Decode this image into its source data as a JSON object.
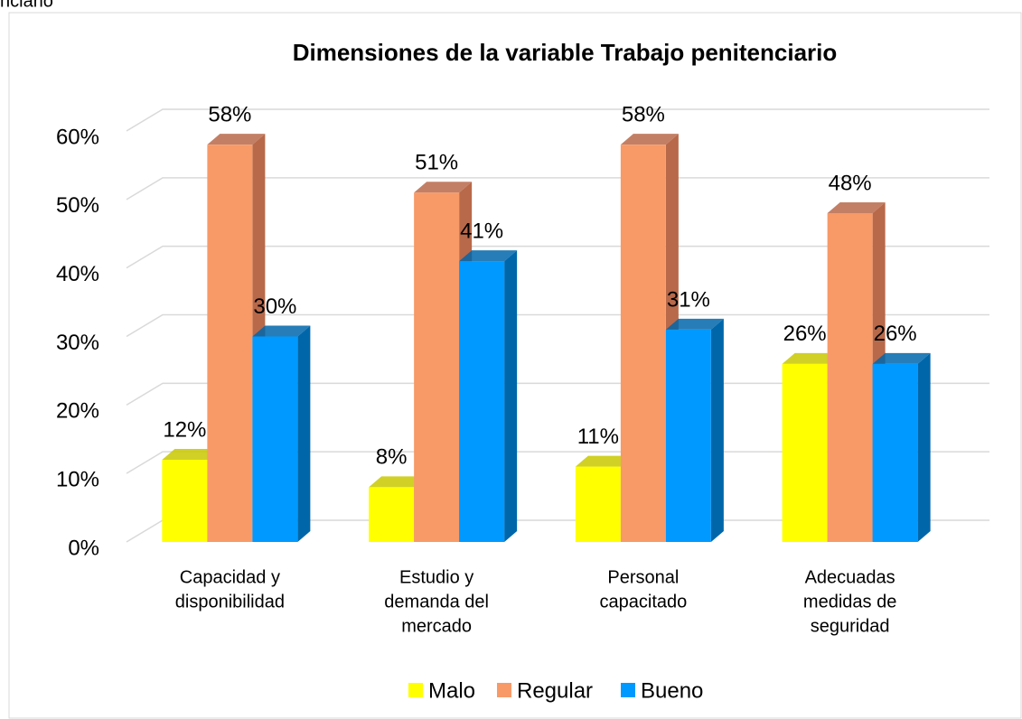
{
  "caption": "nciario",
  "chart_data": {
    "type": "bar3d",
    "title": "Dimensiones de la variable Trabajo penitenciario",
    "categories": [
      [
        "Capacidad y",
        "disponibilidad"
      ],
      [
        "Estudio y",
        "demanda del",
        "mercado"
      ],
      [
        "Personal",
        "capacitado"
      ],
      [
        "Adecuadas",
        "medidas de",
        "seguridad"
      ]
    ],
    "series": [
      {
        "name": "Malo",
        "color": "#ffff00",
        "side": "#c8c800",
        "values": [
          12,
          8,
          11,
          26
        ],
        "value_labels": [
          "12%",
          "8%",
          "11%",
          "26%"
        ]
      },
      {
        "name": "Regular",
        "color": "#f79a68",
        "side": "#b8694a",
        "values": [
          58,
          51,
          58,
          48
        ],
        "value_labels": [
          "58%",
          "51%",
          "58%",
          "48%"
        ]
      },
      {
        "name": "Bueno",
        "color": "#0099ff",
        "side": "#0066aa",
        "values": [
          30,
          41,
          31,
          26
        ],
        "value_labels": [
          "30%",
          "41%",
          "31%",
          "26%"
        ]
      }
    ],
    "ylim": [
      0,
      60
    ],
    "yticks": [
      {
        "value": 0,
        "label": "0%"
      },
      {
        "value": 10,
        "label": "10%"
      },
      {
        "value": 20,
        "label": "20%"
      },
      {
        "value": 30,
        "label": "30%"
      },
      {
        "value": 40,
        "label": "40%"
      },
      {
        "value": 50,
        "label": "50%"
      },
      {
        "value": 60,
        "label": "60%"
      }
    ],
    "grid": true,
    "legend": "bottom"
  }
}
